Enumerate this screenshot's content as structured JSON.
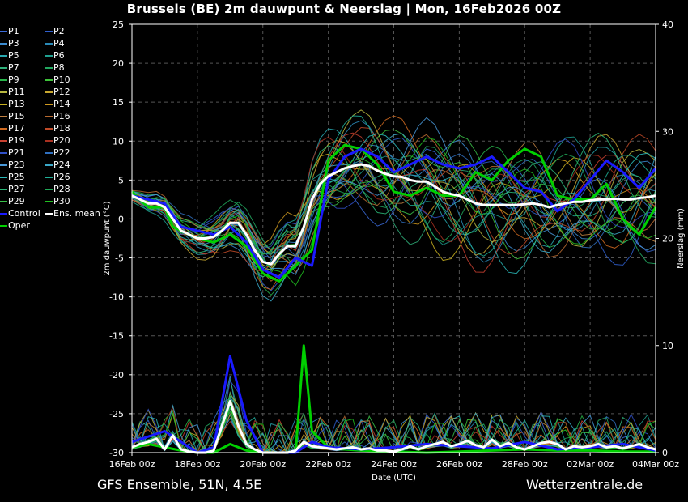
{
  "title": "Brussels  (BE)  2m dauwpunt & Neerslag | Mon, 16Feb2026 00Z",
  "footer": {
    "model": "GFS Ensemble, 51N, 4.5E",
    "source": "Wetterzentrale.de"
  },
  "legend": [
    {
      "name": "P1",
      "color": "#3a6ad8"
    },
    {
      "name": "P2",
      "color": "#2f5fcf"
    },
    {
      "name": "P3",
      "color": "#3b8bd0"
    },
    {
      "name": "P4",
      "color": "#2a8ab8"
    },
    {
      "name": "P5",
      "color": "#28a8b0"
    },
    {
      "name": "P6",
      "color": "#1fa090"
    },
    {
      "name": "P7",
      "color": "#2fb07a"
    },
    {
      "name": "P8",
      "color": "#22a860"
    },
    {
      "name": "P9",
      "color": "#27b54a"
    },
    {
      "name": "P10",
      "color": "#3ec43a"
    },
    {
      "name": "P11",
      "color": "#b8b840"
    },
    {
      "name": "P12",
      "color": "#c8a830"
    },
    {
      "name": "P13",
      "color": "#c8b020"
    },
    {
      "name": "P14",
      "color": "#d09a20"
    },
    {
      "name": "P15",
      "color": "#c08040"
    },
    {
      "name": "P16",
      "color": "#b86a30"
    },
    {
      "name": "P17",
      "color": "#d06a20"
    },
    {
      "name": "P18",
      "color": "#c04a28"
    },
    {
      "name": "P19",
      "color": "#c84030"
    },
    {
      "name": "P20",
      "color": "#a83020"
    },
    {
      "name": "P21",
      "color": "#3050c8"
    },
    {
      "name": "P22",
      "color": "#3070c0"
    },
    {
      "name": "P23",
      "color": "#4898d8"
    },
    {
      "name": "P24",
      "color": "#3aa8c8"
    },
    {
      "name": "P25",
      "color": "#2ab8b8"
    },
    {
      "name": "P26",
      "color": "#20b098"
    },
    {
      "name": "P27",
      "color": "#2ab878"
    },
    {
      "name": "P28",
      "color": "#20a858"
    },
    {
      "name": "P29",
      "color": "#38c048"
    },
    {
      "name": "P30",
      "color": "#20c020"
    },
    {
      "name": "Control",
      "color": "#1a1aff"
    },
    {
      "name": "Ens. mean",
      "color": "#ffffff"
    },
    {
      "name": "Oper",
      "color": "#00d000"
    }
  ],
  "chart_data": {
    "type": "line",
    "xlabel": "Date (UTC)",
    "ylabel": "2m dauwpunt (°C)",
    "y2label": "Neerslag (mm)",
    "ylim": [
      -30,
      25
    ],
    "y2lim": [
      0,
      40
    ],
    "yticks": [
      25,
      20,
      15,
      10,
      5,
      0,
      -5,
      -10,
      -15,
      -20,
      -25,
      -30
    ],
    "y2ticks": [
      40,
      30,
      20,
      10,
      0
    ],
    "xlim_days": [
      0,
      16
    ],
    "xticks": [
      {
        "day": 0,
        "label": "16Feb 00z"
      },
      {
        "day": 2,
        "label": "18Feb 00z"
      },
      {
        "day": 4,
        "label": "20Feb 00z"
      },
      {
        "day": 6,
        "label": "22Feb 00z"
      },
      {
        "day": 8,
        "label": "24Feb 00z"
      },
      {
        "day": 10,
        "label": "26Feb 00z"
      },
      {
        "day": 12,
        "label": "28Feb 00z"
      },
      {
        "day": 14,
        "label": "02Mar 00z"
      },
      {
        "day": 16,
        "label": "04Mar 00z"
      }
    ],
    "grid": true,
    "zero_line": true,
    "series": [
      {
        "name": "Ens. mean",
        "color": "#ffffff",
        "dewpoint": [
          [
            0,
            3
          ],
          [
            0.25,
            2.5
          ],
          [
            0.5,
            2
          ],
          [
            0.75,
            2
          ],
          [
            1,
            1.5
          ],
          [
            1.25,
            0
          ],
          [
            1.5,
            -1.5
          ],
          [
            1.75,
            -2
          ],
          [
            2,
            -2.5
          ],
          [
            2.25,
            -2.5
          ],
          [
            2.5,
            -2.3
          ],
          [
            2.75,
            -1.5
          ],
          [
            3,
            -0.5
          ],
          [
            3.25,
            -0.5
          ],
          [
            3.5,
            -2
          ],
          [
            3.75,
            -4
          ],
          [
            4,
            -5.5
          ],
          [
            4.25,
            -5.8
          ],
          [
            4.5,
            -4.5
          ],
          [
            4.75,
            -3.5
          ],
          [
            5,
            -3.5
          ],
          [
            5.25,
            -1
          ],
          [
            5.5,
            2.5
          ],
          [
            5.75,
            4.5
          ],
          [
            6,
            5.5
          ],
          [
            6.25,
            6
          ],
          [
            6.5,
            6.5
          ],
          [
            6.75,
            6.8
          ],
          [
            7,
            7
          ],
          [
            7.25,
            6.8
          ],
          [
            7.5,
            6.2
          ],
          [
            7.75,
            5.8
          ],
          [
            8,
            5.5
          ],
          [
            8.25,
            5.4
          ],
          [
            8.5,
            5
          ],
          [
            8.75,
            4.8
          ],
          [
            9,
            4.8
          ],
          [
            9.25,
            4.2
          ],
          [
            9.5,
            3.5
          ],
          [
            9.75,
            3.2
          ],
          [
            10,
            3
          ],
          [
            10.25,
            2.5
          ],
          [
            10.5,
            2
          ],
          [
            10.75,
            1.8
          ],
          [
            11,
            1.8
          ],
          [
            11.25,
            1.8
          ],
          [
            11.5,
            1.8
          ],
          [
            11.75,
            1.8
          ],
          [
            12,
            1.9
          ],
          [
            12.25,
            2
          ],
          [
            12.5,
            1.8
          ],
          [
            12.75,
            1.5
          ],
          [
            13,
            1.8
          ],
          [
            13.25,
            2
          ],
          [
            13.5,
            2.2
          ],
          [
            13.75,
            2.2
          ],
          [
            14,
            2.4
          ],
          [
            14.25,
            2.5
          ],
          [
            14.5,
            2.5
          ],
          [
            14.75,
            2.6
          ],
          [
            15,
            2.5
          ],
          [
            15.25,
            2.5
          ],
          [
            15.5,
            2.7
          ],
          [
            15.75,
            2.8
          ],
          [
            16,
            3
          ]
        ],
        "precip": [
          [
            0,
            0.5
          ],
          [
            0.25,
            0.8
          ],
          [
            0.5,
            1
          ],
          [
            0.75,
            1.3
          ],
          [
            1,
            0.3
          ],
          [
            1.25,
            1.6
          ],
          [
            1.5,
            0.3
          ],
          [
            1.75,
            0.1
          ],
          [
            2,
            0
          ],
          [
            2.25,
            0
          ],
          [
            2.5,
            0.2
          ],
          [
            2.75,
            2.5
          ],
          [
            3,
            4.8
          ],
          [
            3.25,
            2.5
          ],
          [
            3.5,
            0.8
          ],
          [
            3.75,
            0.3
          ],
          [
            4,
            0
          ],
          [
            4.25,
            0
          ],
          [
            4.5,
            0
          ],
          [
            4.75,
            0
          ],
          [
            5,
            0.2
          ],
          [
            5.25,
            1
          ],
          [
            5.5,
            0.6
          ],
          [
            5.75,
            0.5
          ],
          [
            6,
            0.4
          ],
          [
            6.25,
            0.3
          ],
          [
            6.5,
            0.4
          ],
          [
            6.75,
            0.5
          ],
          [
            7,
            0.3
          ],
          [
            7.25,
            0.4
          ],
          [
            7.5,
            0.2
          ],
          [
            7.75,
            0.2
          ],
          [
            8,
            0.1
          ],
          [
            8.25,
            0.3
          ],
          [
            8.5,
            0.6
          ],
          [
            8.75,
            0.3
          ],
          [
            9,
            0.6
          ],
          [
            9.25,
            0.8
          ],
          [
            9.5,
            1
          ],
          [
            9.75,
            0.6
          ],
          [
            10,
            0.8
          ],
          [
            10.25,
            1.1
          ],
          [
            10.5,
            0.7
          ],
          [
            10.75,
            0.5
          ],
          [
            11,
            1.2
          ],
          [
            11.25,
            0.6
          ],
          [
            11.5,
            0.9
          ],
          [
            11.75,
            0.5
          ],
          [
            12,
            0.3
          ],
          [
            12.25,
            0.6
          ],
          [
            12.5,
            0.9
          ],
          [
            12.75,
            1
          ],
          [
            13,
            0.8
          ],
          [
            13.25,
            0.3
          ],
          [
            13.5,
            0.6
          ],
          [
            13.75,
            0.5
          ],
          [
            14,
            0.6
          ],
          [
            14.25,
            0.8
          ],
          [
            14.5,
            0.5
          ],
          [
            14.75,
            0.6
          ],
          [
            15,
            0.4
          ],
          [
            15.25,
            0.6
          ],
          [
            15.5,
            0.8
          ],
          [
            15.75,
            0.5
          ],
          [
            16,
            0.3
          ]
        ]
      },
      {
        "name": "Control",
        "color": "#1a1aff",
        "dewpoint": [
          [
            0,
            3
          ],
          [
            0.5,
            2.5
          ],
          [
            1,
            2
          ],
          [
            1.5,
            -1
          ],
          [
            2,
            -1.5
          ],
          [
            2.5,
            -2
          ],
          [
            3,
            -1
          ],
          [
            3.5,
            -3
          ],
          [
            4,
            -6.5
          ],
          [
            4.5,
            -7.5
          ],
          [
            5,
            -5
          ],
          [
            5.5,
            -6
          ],
          [
            6,
            5
          ],
          [
            6.5,
            8
          ],
          [
            7,
            9
          ],
          [
            7.5,
            8
          ],
          [
            8,
            6
          ],
          [
            8.5,
            7
          ],
          [
            9,
            8
          ],
          [
            9.5,
            7
          ],
          [
            10,
            6.5
          ],
          [
            10.5,
            7
          ],
          [
            11,
            8
          ],
          [
            11.5,
            6
          ],
          [
            12,
            4
          ],
          [
            12.5,
            3.5
          ],
          [
            13,
            1
          ],
          [
            13.5,
            2.5
          ],
          [
            14,
            5
          ],
          [
            14.5,
            7.5
          ],
          [
            15,
            6
          ],
          [
            15.5,
            4
          ],
          [
            16,
            6.5
          ]
        ],
        "precip": [
          [
            0,
            1
          ],
          [
            0.5,
            1.5
          ],
          [
            1,
            2
          ],
          [
            1.5,
            1
          ],
          [
            2,
            0
          ],
          [
            2.5,
            0.5
          ],
          [
            3,
            9
          ],
          [
            3.5,
            3
          ],
          [
            4,
            0
          ],
          [
            5,
            0
          ],
          [
            5.5,
            1
          ],
          [
            6,
            0.5
          ],
          [
            7,
            0.3
          ],
          [
            8,
            0.5
          ],
          [
            9,
            0.8
          ],
          [
            10,
            0.6
          ],
          [
            11,
            0.4
          ],
          [
            12,
            1
          ],
          [
            13,
            0.3
          ],
          [
            14,
            0.5
          ],
          [
            15,
            0.8
          ],
          [
            16,
            0.2
          ]
        ]
      },
      {
        "name": "Oper",
        "color": "#00d000",
        "dewpoint": [
          [
            0,
            3.5
          ],
          [
            0.5,
            1.5
          ],
          [
            1,
            1.5
          ],
          [
            1.25,
            -1
          ],
          [
            1.5,
            -1.5
          ],
          [
            2,
            -2.5
          ],
          [
            2.5,
            -3
          ],
          [
            3,
            -2
          ],
          [
            3.5,
            -3.5
          ],
          [
            4,
            -7
          ],
          [
            4.5,
            -8
          ],
          [
            5,
            -6
          ],
          [
            5.5,
            -4
          ],
          [
            6,
            7.5
          ],
          [
            6.5,
            9.5
          ],
          [
            7,
            9
          ],
          [
            7.5,
            7
          ],
          [
            8,
            3.5
          ],
          [
            8.5,
            3
          ],
          [
            9,
            4
          ],
          [
            9.5,
            3
          ],
          [
            10,
            3
          ],
          [
            10.5,
            6
          ],
          [
            11,
            5
          ],
          [
            11.5,
            7.5
          ],
          [
            12,
            9
          ],
          [
            12.5,
            8
          ],
          [
            13,
            3
          ],
          [
            13.5,
            2.5
          ],
          [
            14,
            2.5
          ],
          [
            14.5,
            4.5
          ],
          [
            15,
            0
          ],
          [
            15.5,
            -2
          ],
          [
            16,
            1.5
          ]
        ],
        "precip": [
          [
            0,
            0.5
          ],
          [
            0.5,
            0.8
          ],
          [
            1,
            0.5
          ],
          [
            1.5,
            0.2
          ],
          [
            2,
            0
          ],
          [
            2.5,
            0
          ],
          [
            3,
            0.8
          ],
          [
            3.5,
            0.2
          ],
          [
            4,
            0
          ],
          [
            5,
            0
          ],
          [
            5.25,
            10
          ],
          [
            5.5,
            2
          ],
          [
            6,
            0.5
          ],
          [
            6.5,
            0.3
          ],
          [
            7,
            0.2
          ],
          [
            8,
            0.1
          ],
          [
            9,
            0
          ],
          [
            10,
            0.1
          ],
          [
            11,
            0.2
          ],
          [
            12,
            0.3
          ],
          [
            13,
            0.2
          ],
          [
            14,
            0.2
          ],
          [
            15,
            0.1
          ],
          [
            16,
            0.1
          ]
        ]
      }
    ]
  }
}
